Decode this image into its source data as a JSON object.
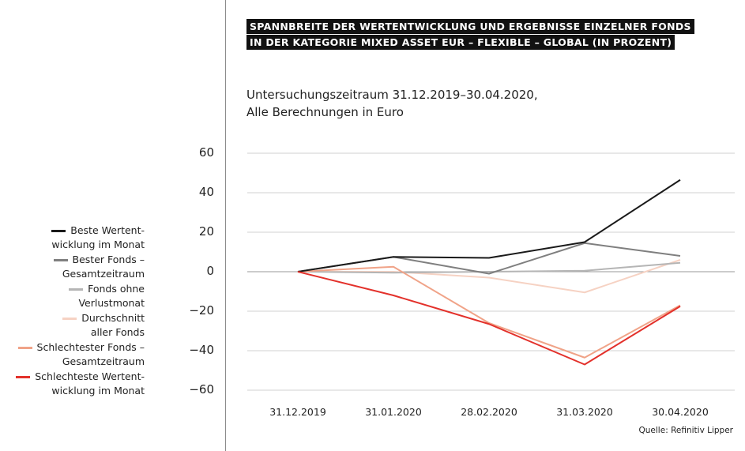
{
  "title_lines": [
    "SPANNBREITE DER WERTENTWICKLUNG UND ERGEBNISSE EINZELNER FONDS",
    "IN DER KATEGORIE MIXED ASSET EUR – FLEXIBLE – GLOBAL (IN PROZENT)"
  ],
  "subtitle_lines": [
    "Untersuchungszeitraum 31.12.2019–30.04.2020,",
    "Alle Berechnungen in Euro"
  ],
  "source": "Quelle: Refinitiv Lipper",
  "chart_data": {
    "type": "line",
    "categories": [
      "31.12.2019",
      "31.01.2020",
      "28.02.2020",
      "31.03.2020",
      "30.04.2020"
    ],
    "ylim": [
      -60,
      60
    ],
    "yticks": [
      "60",
      "40",
      "20",
      "0",
      "−20",
      "−40",
      "−60"
    ],
    "ytick_values": [
      60,
      40,
      20,
      0,
      -20,
      -40,
      -60
    ],
    "grid": true,
    "legend_position": "left",
    "series": [
      {
        "name": [
          "Beste Wertent-",
          "wicklung im Monat"
        ],
        "color": "#1a1a1a",
        "values": [
          0,
          7.5,
          7,
          15,
          46.5
        ]
      },
      {
        "name": [
          "Bester Fonds –",
          "Gesamtzeitraum"
        ],
        "color": "#7f7f7f",
        "values": [
          0,
          7.5,
          -1,
          14.5,
          8
        ]
      },
      {
        "name": [
          "Fonds ohne",
          "Verlustmonat"
        ],
        "color": "#b5b5b5",
        "values": [
          0,
          -0.5,
          0,
          0.5,
          4.5
        ]
      },
      {
        "name": [
          "Durchschnitt",
          "aller Fonds"
        ],
        "color": "#f6d2c3",
        "values": [
          0,
          0,
          -3,
          -10.5,
          6
        ]
      },
      {
        "name": [
          "Schlechtester Fonds –",
          "Gesamtzeitraum"
        ],
        "color": "#f0a388",
        "values": [
          0,
          2.5,
          -26,
          -43.5,
          -17
        ]
      },
      {
        "name": [
          "Schlechteste Wertent-",
          "wicklung im Monat"
        ],
        "color": "#e3312b",
        "values": [
          0,
          -12,
          -26.5,
          -47,
          -17.5
        ]
      }
    ]
  }
}
